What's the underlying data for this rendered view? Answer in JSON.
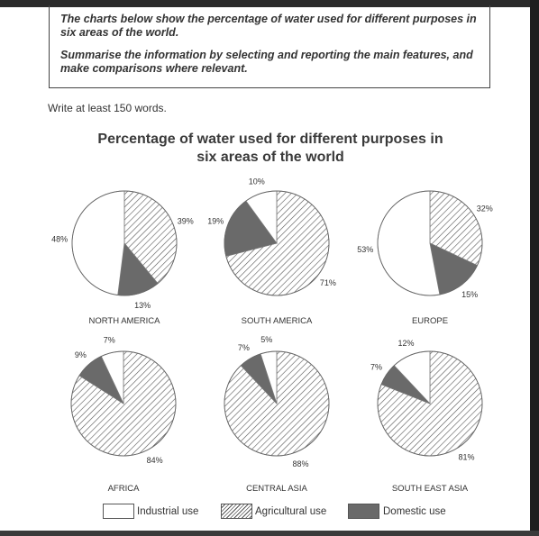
{
  "prompt": {
    "line1": "The charts below show the percentage of water used for different purposes in six areas of the world.",
    "line2": "Summarise the information by selecting and reporting the main features, and make comparisons where relevant."
  },
  "instruction": "Write at least 150 words.",
  "chart_data": {
    "type": "pie",
    "title": "Percentage of water used for different purposes in six areas of the world",
    "categories": [
      "Industrial use",
      "Agricultural use",
      "Domestic use"
    ],
    "colors": {
      "industrial": "#ffffff",
      "agricultural": "hatched",
      "domestic": "#6a6a6a"
    },
    "legend_position": "bottom",
    "pies": [
      {
        "name": "NORTH AMERICA",
        "values": [
          48,
          39,
          13
        ]
      },
      {
        "name": "SOUTH AMERICA",
        "values": [
          10,
          71,
          19
        ]
      },
      {
        "name": "EUROPE",
        "values": [
          53,
          32,
          15
        ]
      },
      {
        "name": "AFRICA",
        "values": [
          7,
          84,
          9
        ]
      },
      {
        "name": "CENTRAL ASIA",
        "values": [
          5,
          88,
          7
        ]
      },
      {
        "name": "SOUTH EAST ASIA",
        "values": [
          12,
          81,
          7
        ]
      }
    ]
  }
}
